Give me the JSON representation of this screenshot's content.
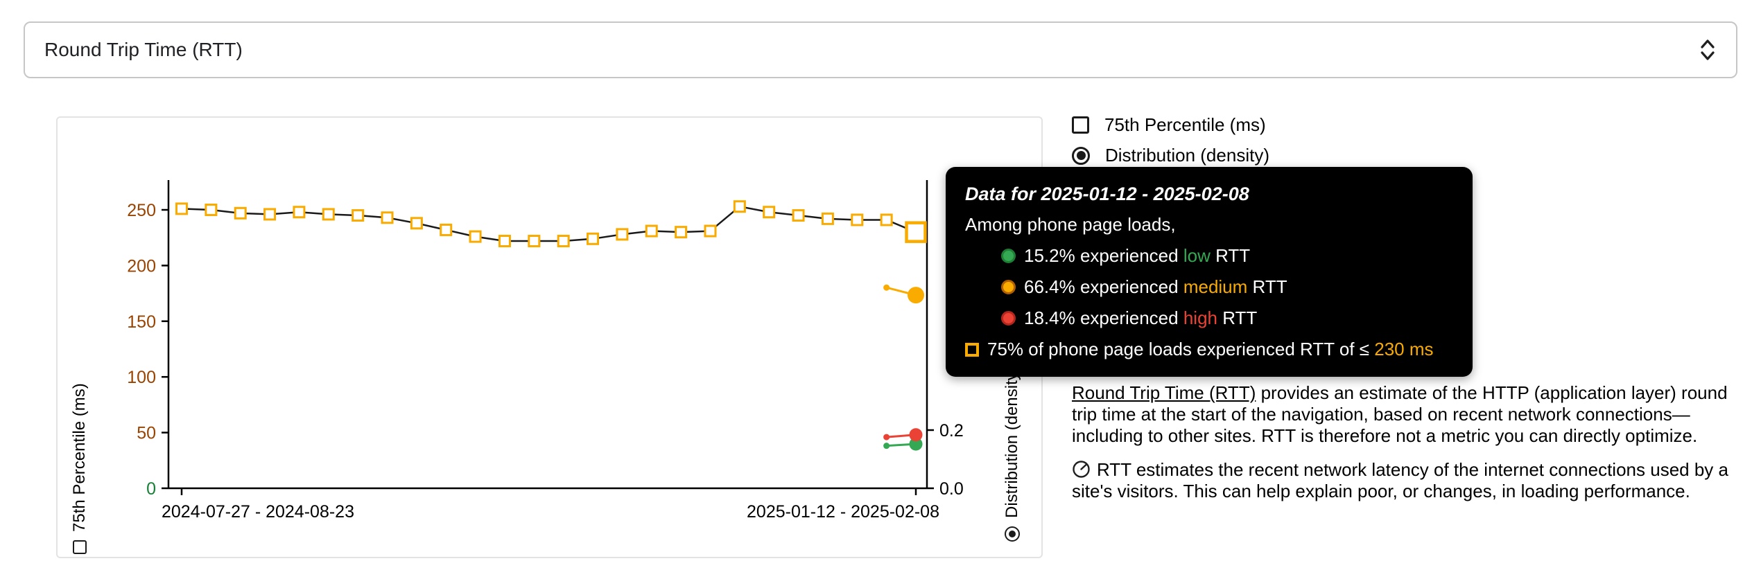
{
  "colors": {
    "accent_orange": "#F9AB00",
    "good_green": "#34A853",
    "bad_red": "#EA4335",
    "tick_good": "#188038",
    "tick_medium": "#9A4300",
    "tooltip_bg": "#000000",
    "axis_black": "#1A1A1A"
  },
  "header": {
    "select_label": "Round Trip Time (RTT)"
  },
  "legend": {
    "percentile_label": "75th Percentile (ms)",
    "distribution_label": "Distribution (density)"
  },
  "axes": {
    "left_label": "75th Percentile (ms)",
    "right_label": "Distribution (density)"
  },
  "chart_data": {
    "type": "line",
    "title": "Round Trip Time (RTT)",
    "xlabel": "",
    "ylabel_left": "75th Percentile (ms)",
    "ylabel_right": "Distribution (density)",
    "x_first_label": "2024-07-27 - 2024-08-23",
    "x_last_label": "2025-01-12 - 2025-02-08",
    "yticks_left": [
      0,
      50,
      100,
      150,
      200,
      250
    ],
    "ytick_left_colors": [
      "#188038",
      "#9A4300",
      "#9A4300",
      "#9A4300",
      "#9A4300",
      "#9A4300"
    ],
    "yticks_right": [
      0.0,
      0.2
    ],
    "ylim_left": [
      0,
      277
    ],
    "ylim_right": [
      0,
      1
    ],
    "grid": false,
    "legend_position": "top-right-outside",
    "series": [
      {
        "name": "75th Percentile (ms)",
        "type": "line",
        "marker": "open-square",
        "marker_color": "#F9AB00",
        "line_color": "#1A1A1A",
        "values": [
          251,
          250,
          247,
          246,
          248,
          246,
          245,
          243,
          238,
          232,
          226,
          222,
          222,
          222,
          224,
          228,
          231,
          230,
          231,
          253,
          248,
          245,
          242,
          241,
          241,
          230
        ],
        "hovered_last_value": 230
      }
    ],
    "density_series": [
      {
        "name": "medium",
        "color": "#F9AB00",
        "values": [
          0.69,
          0.664
        ],
        "big_r": 12
      },
      {
        "name": "low",
        "color": "#34A853",
        "values": [
          0.146,
          0.152
        ],
        "big_r": 9.5
      },
      {
        "name": "high",
        "color": "#EA4335",
        "values": [
          0.176,
          0.184
        ],
        "big_r": 9.5
      }
    ]
  },
  "tooltip": {
    "title": "Data for 2025-01-12 - 2025-02-08",
    "subtitle": "Among phone page loads,",
    "rows": [
      {
        "lead": "15.2% experienced ",
        "rating": "low",
        "tail": " RTT",
        "color": "#34A853",
        "ring": "#1E7E34"
      },
      {
        "lead": "66.4% experienced ",
        "rating": "medium",
        "tail": " RTT",
        "color": "#F9AB00",
        "ring": "#B06000"
      },
      {
        "lead": "18.4% experienced ",
        "rating": "high",
        "tail": " RTT",
        "color": "#EA4335",
        "ring": "#B3261E"
      }
    ],
    "percentile_row": {
      "lead": "75% of phone page loads experienced RTT of ≤ ",
      "value": "230 ms"
    }
  },
  "info": {
    "p1_link": "Round Trip Time (RTT)",
    "p1_rest": " provides an estimate of the HTTP (application layer) round trip time at the start of the navigation, based on recent network connections—including to other sites. RTT is therefore not a metric you can directly optimize.",
    "p2": "RTT estimates the recent network latency of the internet connections used by a site's visitors. This can help explain poor, or changes, in loading performance."
  }
}
